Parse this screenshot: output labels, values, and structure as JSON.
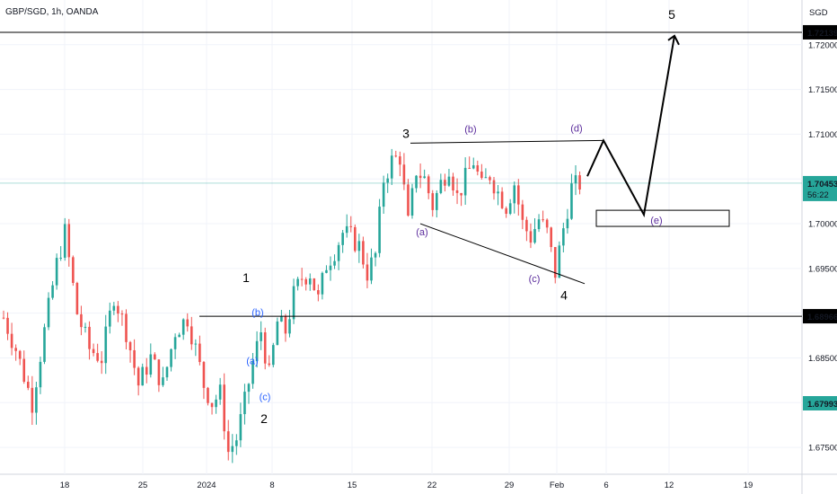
{
  "header": {
    "symbol_label": "GBP/SGD, 1h, OANDA",
    "currency_button": "SGD"
  },
  "colors": {
    "up": "#26a69a",
    "down": "#ef5350",
    "grid": "#f0f3fa",
    "last_price": "#26a69a",
    "line": "#000000",
    "wave_blue": "#2962ff",
    "wave_purple": "#5b2c9c"
  },
  "chart_data": {
    "type": "candlestick",
    "title": "",
    "xlabel": "",
    "ylabel": "",
    "ylim": [
      1.672,
      1.725
    ],
    "x_ticks": [
      "18",
      "25",
      "2024",
      "8",
      "15",
      "22",
      "29",
      "Feb",
      "6",
      "12",
      "19"
    ],
    "y_ticks": [
      "1.72000",
      "1.71500",
      "1.71000",
      "1.70500",
      "1.70000",
      "1.69500",
      "1.69000",
      "1.68500",
      "1.68000",
      "1.67500"
    ],
    "horizontal_levels": [
      {
        "label": "1.72139",
        "value": 1.72139
      },
      {
        "label": "1.68966",
        "value": 1.68966
      }
    ],
    "last_price": {
      "label": "1.70453",
      "value": 1.70453,
      "countdown": "56:22"
    },
    "marker_price": {
      "label": "1.67993",
      "value": 1.67993
    },
    "price_path": [
      [
        0,
        1.6895
      ],
      [
        3,
        1.686
      ],
      [
        7,
        1.68
      ],
      [
        10,
        1.688
      ],
      [
        13,
        1.6955
      ],
      [
        15,
        1.699
      ],
      [
        18,
        1.69
      ],
      [
        21,
        1.686
      ],
      [
        24,
        1.685
      ],
      [
        27,
        1.692
      ],
      [
        30,
        1.688
      ],
      [
        33,
        1.682
      ],
      [
        36,
        1.685
      ],
      [
        39,
        1.682
      ],
      [
        42,
        1.688
      ],
      [
        45,
        1.6895
      ],
      [
        47,
        1.686
      ],
      [
        49,
        1.682
      ],
      [
        51,
        1.68
      ],
      [
        53,
        1.681
      ],
      [
        55,
        1.6745
      ],
      [
        57,
        1.676
      ],
      [
        59,
        1.68
      ],
      [
        61,
        1.6845
      ],
      [
        63,
        1.688
      ],
      [
        65,
        1.683
      ],
      [
        67,
        1.689
      ],
      [
        69,
        1.688
      ],
      [
        71,
        1.692
      ],
      [
        73,
        1.694
      ],
      [
        75,
        1.6945
      ],
      [
        77,
        1.6915
      ],
      [
        79,
        1.6955
      ],
      [
        81,
        1.697
      ],
      [
        83,
        1.699
      ],
      [
        85,
        1.6985
      ],
      [
        87,
        1.6975
      ],
      [
        89,
        1.6945
      ],
      [
        91,
        1.6965
      ],
      [
        93,
        1.705
      ],
      [
        95,
        1.707
      ],
      [
        97,
        1.7075
      ],
      [
        99,
        1.7
      ],
      [
        101,
        1.706
      ],
      [
        103,
        1.705
      ],
      [
        105,
        1.702
      ],
      [
        107,
        1.7045
      ],
      [
        109,
        1.7065
      ],
      [
        111,
        1.703
      ],
      [
        113,
        1.705
      ],
      [
        115,
        1.707
      ],
      [
        117,
        1.704
      ],
      [
        119,
        1.7055
      ],
      [
        121,
        1.7035
      ],
      [
        123,
        1.702
      ],
      [
        125,
        1.7045
      ],
      [
        127,
        1.7
      ],
      [
        129,
        1.6985
      ],
      [
        131,
        1.7005
      ],
      [
        133,
        1.699
      ],
      [
        135,
        1.6945
      ],
      [
        137,
        1.6995
      ],
      [
        139,
        1.704
      ],
      [
        141,
        1.7045
      ]
    ],
    "annotations": {
      "wave_numbers": [
        "1",
        "2",
        "3",
        "4",
        "5"
      ],
      "wave_letters": [
        "(a)",
        "(b)",
        "(c)",
        "(a)",
        "(b)",
        "(c)",
        "(d)",
        "(e)"
      ]
    },
    "grid": true,
    "legend": "none"
  },
  "sections": [
    {
      "type": "Chart Header",
      "label": "GBP/SGD, 1h, OANDA",
      "sub_label": "SGD"
    }
  ]
}
